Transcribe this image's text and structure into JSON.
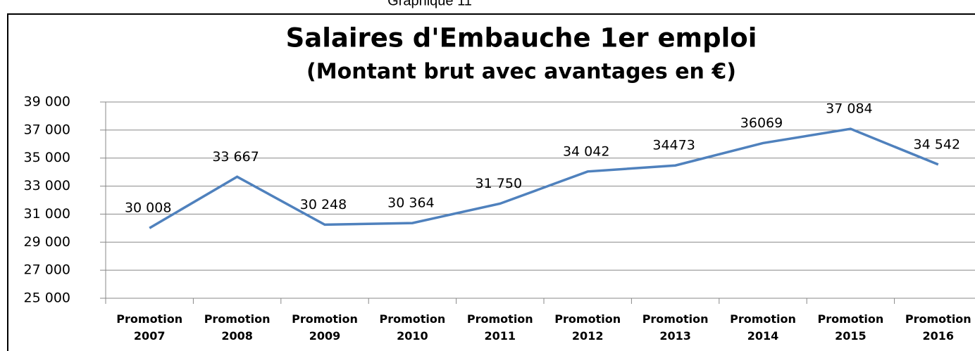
{
  "caption": "Graphique 11",
  "chart_data": {
    "type": "line",
    "title": "Salaires  d'Embauche  1er emploi",
    "subtitle": "(Montant brut avec avantages en €)",
    "categories": [
      "Promotion 2007",
      "Promotion 2008",
      "Promotion 2009",
      "Promotion 2010",
      "Promotion 2011",
      "Promotion 2012",
      "Promotion 2013",
      "Promotion 2014",
      "Promotion 2015",
      "Promotion 2016"
    ],
    "series": [
      {
        "color": "#4f81bd",
        "values": [
          30008,
          33667,
          30248,
          30364,
          31750,
          34042,
          34473,
          36069,
          37084,
          34542
        ],
        "value_labels": [
          "30 008",
          "33 667",
          "30 248",
          "30 364",
          "31 750",
          "34 042",
          "34473",
          "36069",
          "37 084",
          "34 542"
        ]
      }
    ],
    "ylim": [
      25000,
      39000
    ],
    "yticks": [
      {
        "value": 25000,
        "label": "25 000"
      },
      {
        "value": 27000,
        "label": "27 000"
      },
      {
        "value": 29000,
        "label": "29 000"
      },
      {
        "value": 31000,
        "label": "31 000"
      },
      {
        "value": 33000,
        "label": "33 000"
      },
      {
        "value": 35000,
        "label": "35 000"
      },
      {
        "value": 37000,
        "label": "37 000"
      },
      {
        "value": 39000,
        "label": "39 000"
      }
    ],
    "grid": true
  }
}
